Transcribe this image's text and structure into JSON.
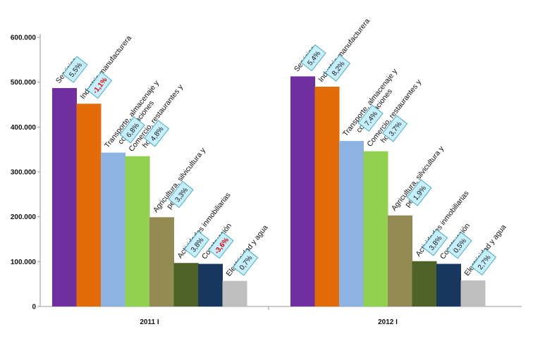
{
  "chart_data": {
    "type": "bar",
    "title": "",
    "xlabel": "",
    "ylabel": "",
    "ylim": [
      0,
      600000
    ],
    "y_ticks": [
      "0",
      "100.000",
      "200.000",
      "300.000",
      "400.000",
      "500.000",
      "600.000"
    ],
    "grid": false,
    "legend": "none",
    "categories": [
      "Servicios",
      "Industria manufacturera",
      "Transporte, almacenaje y comunicaciones",
      "Comercio, restaurantes y hoteles",
      "Agricultura, silvicultura y pesca",
      "Actividades inmobiliarias",
      "Construcción",
      "Electricidad y agua"
    ],
    "category_label_lines": [
      [
        "Servicios"
      ],
      [
        "Industria manufacturera"
      ],
      [
        "Transporte, almacenaje y",
        "comunicaciones"
      ],
      [
        "Comercio, restaurantes y",
        "hoteles"
      ],
      [
        "Agricultura, silvicultura y",
        "pesca"
      ],
      [
        "Actividades inmobiliarias"
      ],
      [
        "Construcción"
      ],
      [
        "Electricidad y agua"
      ]
    ],
    "colors": [
      "#7030a0",
      "#e36c09",
      "#8db3e2",
      "#92d050",
      "#948a54",
      "#4f6228",
      "#17375e",
      "#bfbfbf"
    ],
    "callout_fill": "#c6efff",
    "callout_stroke": "#4bacc6",
    "negative_color": "#e00000",
    "groups": [
      {
        "label": "2011 I",
        "values": [
          487000,
          452000,
          343000,
          335000,
          199000,
          97000,
          95000,
          57000
        ],
        "growth_labels": [
          "5,5%",
          "-1,1%",
          "6,8%",
          "4,8%",
          "3,3%",
          "3,8%",
          "-3,6%",
          "0,7%"
        ],
        "negative": [
          false,
          true,
          false,
          false,
          false,
          false,
          true,
          false
        ]
      },
      {
        "label": "2012 I",
        "values": [
          513000,
          490000,
          369000,
          346000,
          203000,
          101000,
          95000,
          58000
        ],
        "growth_labels": [
          "5,4%",
          "8,2%",
          "7,4%",
          "3,7%",
          "1,9%",
          "3,8%",
          "0,5%",
          "2,7%"
        ],
        "negative": [
          false,
          false,
          false,
          false,
          false,
          false,
          false,
          false
        ]
      }
    ]
  }
}
